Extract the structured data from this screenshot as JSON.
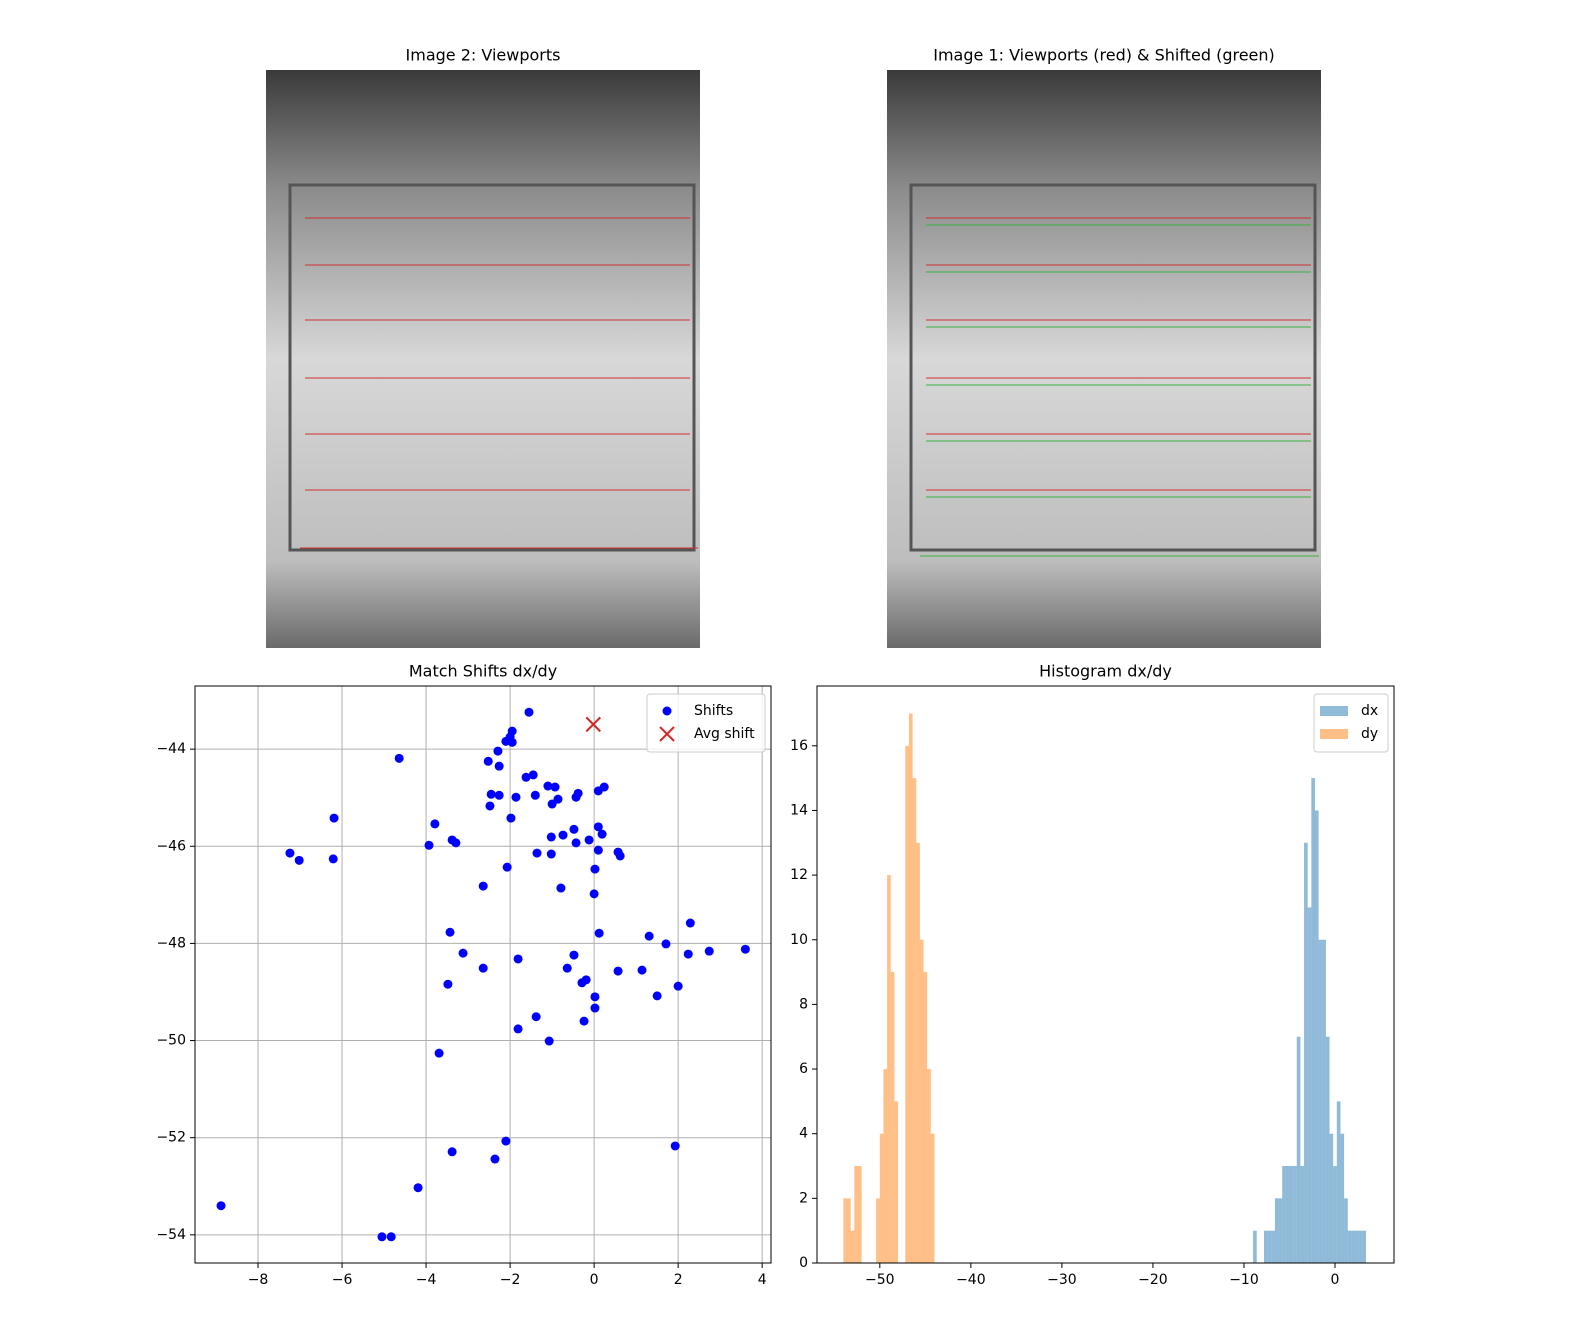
{
  "images": [
    {
      "title": "Image 2: Viewports"
    },
    {
      "title": "Image 1: Viewports (red) & Shifted (green)"
    }
  ],
  "chart_data": [
    {
      "type": "scatter",
      "title": "Match Shifts dx/dy",
      "grid": true,
      "legend": "upper right",
      "xlim": [
        -9.5,
        4.21
      ],
      "ylim": [
        -54.58,
        -42.7
      ],
      "xticks": [
        {
          "value": -8,
          "label": "−8"
        },
        {
          "value": -6,
          "label": "−6"
        },
        {
          "value": -4,
          "label": "−4"
        },
        {
          "value": -2,
          "label": "−2"
        },
        0,
        2,
        4
      ],
      "yticks": [
        {
          "value": -54,
          "label": "−54"
        },
        {
          "value": -52,
          "label": "−52"
        },
        {
          "value": -50,
          "label": "−50"
        },
        {
          "value": -48,
          "label": "−48"
        },
        {
          "value": -46,
          "label": "−46"
        },
        {
          "value": -44,
          "label": "−44"
        }
      ],
      "series": [
        {
          "name": "Shifts",
          "color": "#0000ff",
          "marker": "o",
          "x": [
            -1.55,
            -1.95,
            -2.0,
            -2.1,
            -1.95,
            -2.29,
            -2.52,
            -4.64,
            -2.26,
            -1.62,
            -1.45,
            -1.1,
            -0.93,
            0.24,
            0.1,
            -0.38,
            -0.43,
            -2.45,
            -2.26,
            -1.86,
            -1.4,
            -0.86,
            -1.0,
            -2.48,
            -6.19,
            -1.98,
            -3.79,
            0.1,
            -0.48,
            0.19,
            -0.74,
            -1.02,
            -3.38,
            -3.29,
            -0.12,
            -3.93,
            -0.43,
            0.1,
            -1.36,
            -1.02,
            0.57,
            0.62,
            -7.24,
            -7.02,
            -6.21,
            -2.07,
            0.02,
            -2.64,
            -0.79,
            0.0,
            2.29,
            -3.43,
            0.12,
            1.31,
            1.71,
            3.6,
            2.74,
            2.24,
            -3.12,
            -1.81,
            -0.48,
            -2.64,
            -0.64,
            0.57,
            1.14,
            -0.19,
            -0.29,
            -3.48,
            2.0,
            1.5,
            0.02,
            0.02,
            -1.38,
            -0.24,
            -1.81,
            -1.07,
            -3.69,
            -2.1,
            1.93,
            -3.38,
            -2.36,
            -4.19,
            -8.88,
            -5.05,
            -4.83
          ],
          "values": [
            -43.24,
            -43.63,
            -43.75,
            -43.84,
            -43.86,
            -44.04,
            -44.25,
            -44.19,
            -44.35,
            -44.58,
            -44.53,
            -44.76,
            -44.78,
            -44.78,
            -44.86,
            -44.91,
            -44.99,
            -44.93,
            -44.95,
            -44.99,
            -44.95,
            -45.03,
            -45.13,
            -45.17,
            -45.42,
            -45.42,
            -45.54,
            -45.6,
            -45.65,
            -45.75,
            -45.77,
            -45.81,
            -45.87,
            -45.93,
            -45.87,
            -45.98,
            -45.93,
            -46.08,
            -46.14,
            -46.16,
            -46.12,
            -46.2,
            -46.14,
            -46.29,
            -46.26,
            -46.43,
            -46.47,
            -46.82,
            -46.86,
            -46.98,
            -47.58,
            -47.77,
            -47.79,
            -47.85,
            -48.01,
            -48.12,
            -48.16,
            -48.22,
            -48.2,
            -48.32,
            -48.24,
            -48.51,
            -48.51,
            -48.57,
            -48.55,
            -48.75,
            -48.81,
            -48.84,
            -48.88,
            -49.08,
            -49.1,
            -49.33,
            -49.51,
            -49.6,
            -49.76,
            -50.01,
            -50.26,
            -52.07,
            -52.17,
            -52.29,
            -52.44,
            -53.03,
            -53.4,
            -54.04,
            -54.04
          ]
        },
        {
          "name": "Avg shift",
          "color": "#d62728",
          "marker": "x",
          "x": [
            -0.02
          ],
          "values": [
            -43.49
          ]
        }
      ]
    },
    {
      "type": "histogram",
      "title": "Histogram dx/dy",
      "grid": false,
      "legend": "upper right",
      "alpha": 0.5,
      "xlim": [
        -56.9,
        6.48
      ],
      "ylim": [
        0,
        17.85
      ],
      "xticks": [
        {
          "value": -50,
          "label": "−50"
        },
        {
          "value": -40,
          "label": "−40"
        },
        {
          "value": -30,
          "label": "−30"
        },
        {
          "value": -20,
          "label": "−20"
        },
        {
          "value": -10,
          "label": "−10"
        },
        0
      ],
      "yticks": [
        0,
        2,
        4,
        6,
        8,
        10,
        12,
        14,
        16
      ],
      "series": [
        {
          "name": "dx",
          "color": "#1f77b4",
          "bins": [
            -9.0,
            -8.6,
            -8.2,
            -7.8,
            -7.4,
            -7.0,
            -6.6,
            -6.2,
            -5.8,
            -5.4,
            -5.0,
            -4.6,
            -4.2,
            -3.8,
            -3.4,
            -3.0,
            -2.6,
            -2.2,
            -1.8,
            -1.4,
            -1.0,
            -0.6,
            -0.2,
            0.2,
            0.6,
            1.0,
            1.4,
            1.8,
            2.2,
            2.6,
            3.0,
            3.4
          ],
          "values": [
            1,
            0,
            0,
            1,
            1,
            1,
            2,
            2,
            3,
            3,
            3,
            3,
            7,
            3,
            13,
            11,
            15,
            14,
            10,
            10,
            7,
            4,
            3,
            5,
            4,
            2,
            1,
            1,
            1,
            1,
            1
          ]
        },
        {
          "name": "dy",
          "color": "#ff7f0e",
          "bins": [
            -54.0,
            -53.6,
            -53.2,
            -52.8,
            -52.4,
            -52.0,
            -51.6,
            -51.2,
            -50.8,
            -50.4,
            -50.0,
            -49.6,
            -49.2,
            -48.8,
            -48.4,
            -48.0,
            -47.6,
            -47.2,
            -46.8,
            -46.4,
            -46.0,
            -45.6,
            -45.2,
            -44.8,
            -44.4,
            -44.0
          ],
          "values": [
            2,
            2,
            1,
            3,
            3,
            0,
            0,
            0,
            0,
            2,
            4,
            6,
            12,
            9,
            5,
            0,
            0,
            16,
            17,
            15,
            13,
            10,
            9,
            6,
            4
          ]
        }
      ]
    }
  ]
}
